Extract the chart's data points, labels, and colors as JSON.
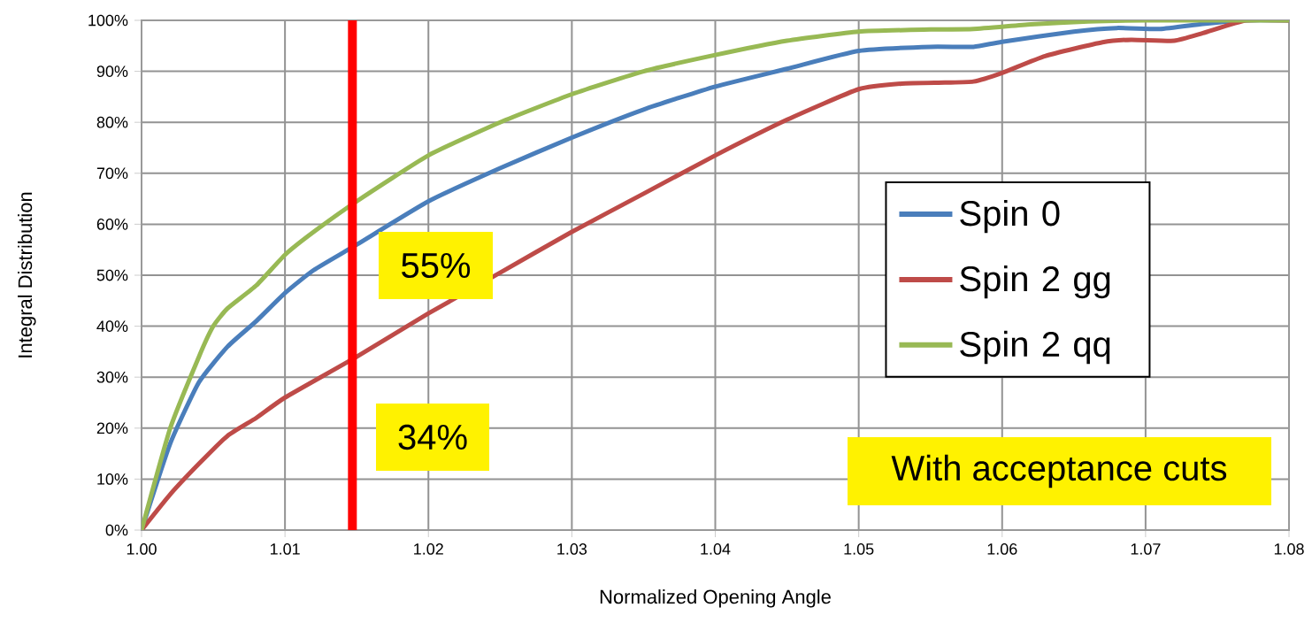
{
  "chart_data": {
    "type": "line",
    "xlabel": "Normalized Opening Angle",
    "ylabel": "Integral Distribution",
    "xlim": [
      1.0,
      1.08
    ],
    "ylim": [
      0,
      100
    ],
    "xticks": [
      {
        "value": 1.0,
        "label": "1.00"
      },
      {
        "value": 1.01,
        "label": "1.01"
      },
      {
        "value": 1.02,
        "label": "1.02"
      },
      {
        "value": 1.03,
        "label": "1.03"
      },
      {
        "value": 1.04,
        "label": "1.04"
      },
      {
        "value": 1.05,
        "label": "1.05"
      },
      {
        "value": 1.06,
        "label": "1.06"
      },
      {
        "value": 1.07,
        "label": "1.07"
      },
      {
        "value": 1.08,
        "label": "1.08"
      }
    ],
    "yticks": [
      {
        "value": 0,
        "label": "0%"
      },
      {
        "value": 10,
        "label": "10%"
      },
      {
        "value": 20,
        "label": "20%"
      },
      {
        "value": 30,
        "label": "30%"
      },
      {
        "value": 40,
        "label": "40%"
      },
      {
        "value": 50,
        "label": "50%"
      },
      {
        "value": 60,
        "label": "60%"
      },
      {
        "value": 70,
        "label": "70%"
      },
      {
        "value": 80,
        "label": "80%"
      },
      {
        "value": 90,
        "label": "90%"
      },
      {
        "value": 100,
        "label": "100%"
      }
    ],
    "grid": true,
    "legend": "right",
    "marker": "none",
    "line_style": "solid",
    "series": [
      {
        "name": "Spin 0",
        "color": "#4a7ebb",
        "x": [
          1.0,
          1.002,
          1.004,
          1.006,
          1.008,
          1.01,
          1.012,
          1.015,
          1.02,
          1.025,
          1.03,
          1.035,
          1.04,
          1.045,
          1.05,
          1.055,
          1.058,
          1.06,
          1.065,
          1.068,
          1.071,
          1.074,
          1.077,
          1.08
        ],
        "values": [
          0,
          17,
          29,
          36,
          41,
          46.5,
          51,
          56,
          64.5,
          71,
          77,
          82.5,
          87,
          90.5,
          94,
          94.8,
          94.8,
          95.8,
          97.8,
          98.5,
          98.3,
          99.3,
          100,
          100
        ]
      },
      {
        "name": "Spin 2 gg",
        "color": "#be4b48",
        "x": [
          1.0,
          1.002,
          1.004,
          1.006,
          1.008,
          1.01,
          1.015,
          1.02,
          1.025,
          1.03,
          1.035,
          1.04,
          1.045,
          1.05,
          1.053,
          1.056,
          1.058,
          1.06,
          1.063,
          1.067,
          1.069,
          1.072,
          1.074,
          1.077,
          1.08
        ],
        "values": [
          0,
          7,
          13,
          18.5,
          22,
          26,
          34,
          42.5,
          50.5,
          58.5,
          66,
          73.5,
          80.5,
          86.5,
          87.6,
          87.8,
          88,
          89.7,
          93,
          95.7,
          96.2,
          96,
          97.5,
          100,
          100
        ]
      },
      {
        "name": "Spin 2 qq",
        "color": "#98b954",
        "x": [
          1.0,
          1.002,
          1.004,
          1.005,
          1.006,
          1.008,
          1.01,
          1.012,
          1.015,
          1.02,
          1.025,
          1.03,
          1.035,
          1.04,
          1.045,
          1.05,
          1.055,
          1.058,
          1.062,
          1.066,
          1.07,
          1.08
        ],
        "values": [
          0,
          20,
          34,
          40,
          43.5,
          48,
          54,
          58.5,
          64.5,
          73.5,
          80,
          85.5,
          90,
          93.2,
          96,
          97.8,
          98.2,
          98.3,
          99.2,
          99.8,
          100,
          100
        ]
      }
    ],
    "ref_lines": [
      {
        "axis": "x",
        "value": 1.0147,
        "color": "#ff0000"
      }
    ],
    "annotations": [
      "55%",
      "34%",
      "With acceptance cuts"
    ]
  }
}
